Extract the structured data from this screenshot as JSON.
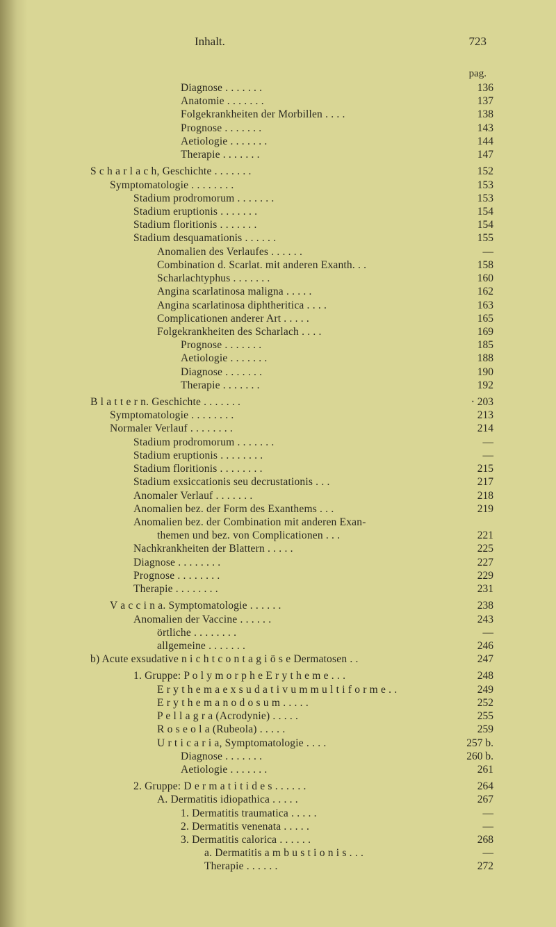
{
  "background_color": "#d9d695",
  "text_color": "#2a2820",
  "header": {
    "title": "Inhalt.",
    "page_number": "723",
    "page_col_label": "pag."
  },
  "entries": [
    {
      "indent": 4,
      "text": "Diagnose",
      "page": "136",
      "dots": 7
    },
    {
      "indent": 4,
      "text": "Anatomie",
      "page": "137",
      "dots": 7
    },
    {
      "indent": 4,
      "text": "Folgekrankheiten der Morbillen",
      "page": "138",
      "dots": 4
    },
    {
      "indent": 4,
      "text": "Prognose",
      "page": "143",
      "dots": 7
    },
    {
      "indent": 4,
      "text": "Aetiologie",
      "page": "144",
      "dots": 7
    },
    {
      "indent": 4,
      "text": "Therapie",
      "page": "147",
      "dots": 7
    },
    {
      "indent": 0,
      "text": "Scharlach, Geschichte",
      "page": "152",
      "dots": 7,
      "gap": true,
      "spaced_prefix": "Scharlach"
    },
    {
      "indent": 1,
      "text": "Symptomatologie",
      "page": "153",
      "dots": 8
    },
    {
      "indent": 2,
      "text": "Stadium prodromorum",
      "page": "153",
      "dots": 7
    },
    {
      "indent": 2,
      "text": "Stadium eruptionis",
      "page": "154",
      "dots": 7
    },
    {
      "indent": 2,
      "text": "Stadium floritionis",
      "page": "154",
      "dots": 7
    },
    {
      "indent": 2,
      "text": "Stadium desquamationis",
      "page": "155",
      "dots": 6
    },
    {
      "indent": 3,
      "text": "Anomalien des Verlaufes",
      "page": "—",
      "dots": 6
    },
    {
      "indent": 3,
      "text": "Combination d. Scarlat. mit anderen Exanth.",
      "page": "158",
      "dots": 2
    },
    {
      "indent": 3,
      "text": "Scharlachtyphus",
      "page": "160",
      "dots": 7
    },
    {
      "indent": 3,
      "text": "Angina scarlatinosa maligna",
      "page": "162",
      "dots": 5
    },
    {
      "indent": 3,
      "text": "Angina scarlatinosa diphtheritica",
      "page": "163",
      "dots": 4
    },
    {
      "indent": 3,
      "text": "Complicationen anderer Art",
      "page": "165",
      "dots": 5
    },
    {
      "indent": 3,
      "text": "Folgekrankheiten des Scharlach",
      "page": "169",
      "dots": 4
    },
    {
      "indent": 4,
      "text": "Prognose",
      "page": "185",
      "dots": 7
    },
    {
      "indent": 4,
      "text": "Aetiologie",
      "page": "188",
      "dots": 7
    },
    {
      "indent": 4,
      "text": "Diagnose",
      "page": "190",
      "dots": 7
    },
    {
      "indent": 4,
      "text": "Therapie",
      "page": "192",
      "dots": 7
    },
    {
      "indent": 0,
      "text": "Blattern. Geschichte",
      "page": "· 203",
      "dots": 7,
      "gap": true,
      "spaced_prefix": "Blattern"
    },
    {
      "indent": 1,
      "text": "Symptomatologie",
      "page": "213",
      "dots": 8
    },
    {
      "indent": 1,
      "text": "Normaler Verlauf",
      "page": "214",
      "dots": 8
    },
    {
      "indent": 2,
      "text": "Stadium prodromorum",
      "page": "—",
      "dots": 7
    },
    {
      "indent": 2,
      "text": "Stadium eruptionis",
      "page": "—",
      "dots": 8
    },
    {
      "indent": 2,
      "text": "Stadium floritionis",
      "page": "215",
      "dots": 8
    },
    {
      "indent": 2,
      "text": "Stadium exsiccationis seu decrustationis",
      "page": "217",
      "dots": 3
    },
    {
      "indent": 2,
      "text": "Anomaler Verlauf",
      "page": "218",
      "dots": 7
    },
    {
      "indent": 2,
      "text": "Anomalien bez. der Form des Exanthems",
      "page": "219",
      "dots": 3
    },
    {
      "indent": 2,
      "text": "Anomalien bez. der Combination mit anderen Exan-",
      "page": "",
      "dots": 0
    },
    {
      "indent": 3,
      "text": "   themen und bez. von Complicationen",
      "page": "221",
      "dots": 3
    },
    {
      "indent": 2,
      "text": "Nachkrankheiten der Blattern",
      "page": "225",
      "dots": 5
    },
    {
      "indent": 2,
      "text": "Diagnose",
      "page": "227",
      "dots": 8
    },
    {
      "indent": 2,
      "text": "Prognose",
      "page": "229",
      "dots": 8
    },
    {
      "indent": 2,
      "text": "Therapie",
      "page": "231",
      "dots": 8
    },
    {
      "indent": 1,
      "text": "Vaccina. Symptomatologie",
      "page": "238",
      "dots": 6,
      "gap": true,
      "spaced_prefix": "Vaccina"
    },
    {
      "indent": 2,
      "text": "Anomalien der Vaccine",
      "page": "243",
      "dots": 6
    },
    {
      "indent": 3,
      "text": "örtliche",
      "page": "—",
      "dots": 8
    },
    {
      "indent": 3,
      "text": "allgemeine",
      "page": "246",
      "dots": 7
    },
    {
      "indent": 0,
      "text": "b) Acute exsudative nicht contagiöse Dermatosen",
      "page": "247",
      "dots": 2,
      "spaced_words": [
        "nicht",
        "contagiöse"
      ]
    },
    {
      "indent": 2,
      "text": "1. Gruppe: Polymorphe Erytheme",
      "page": "248",
      "dots": 3,
      "gap": true,
      "spaced_words": [
        "Polymorphe",
        "Erytheme"
      ]
    },
    {
      "indent": 3,
      "text": "Erythema exsudativum multiforme",
      "page": "249",
      "dots": 2,
      "spaced_words": [
        "Erythema",
        "exsudativum",
        "multiforme"
      ]
    },
    {
      "indent": 3,
      "text": "Erythema nodosum",
      "page": "252",
      "dots": 5,
      "spaced_words": [
        "Erythema",
        "nodosum"
      ]
    },
    {
      "indent": 3,
      "text": "Pellagra (Acrodynie)",
      "page": "255",
      "dots": 5,
      "spaced_words": [
        "Pellagra"
      ]
    },
    {
      "indent": 3,
      "text": "Roseola (Rubeola)",
      "page": "259",
      "dots": 5,
      "spaced_words": [
        "Roseola"
      ]
    },
    {
      "indent": 3,
      "text": "Urticaria, Symptomatologie",
      "page": "257 b.",
      "dots": 4,
      "spaced_words": [
        "Urticaria"
      ]
    },
    {
      "indent": 4,
      "text": "Diagnose",
      "page": "260 b.",
      "dots": 7
    },
    {
      "indent": 4,
      "text": "Aetiologie",
      "page": "261",
      "dots": 7
    },
    {
      "indent": 2,
      "text": "2. Gruppe: Dermatitides",
      "page": "264",
      "dots": 6,
      "gap": true,
      "spaced_words": [
        "Dermatitides"
      ]
    },
    {
      "indent": 3,
      "text": "A. Dermatitis idiopathica",
      "page": "267",
      "dots": 5
    },
    {
      "indent": 4,
      "text": "1. Dermatitis traumatica",
      "page": "—",
      "dots": 5
    },
    {
      "indent": 4,
      "text": "2. Dermatitis venenata",
      "page": "—",
      "dots": 5
    },
    {
      "indent": 4,
      "text": "3. Dermatitis calorica",
      "page": "268",
      "dots": 6
    },
    {
      "indent": 5,
      "text": "a. Dermatitis ambustionis",
      "page": "—",
      "dots": 3,
      "spaced_words": [
        "ambustionis"
      ]
    },
    {
      "indent": 5,
      "text": "   Therapie",
      "page": "272",
      "dots": 6
    }
  ]
}
